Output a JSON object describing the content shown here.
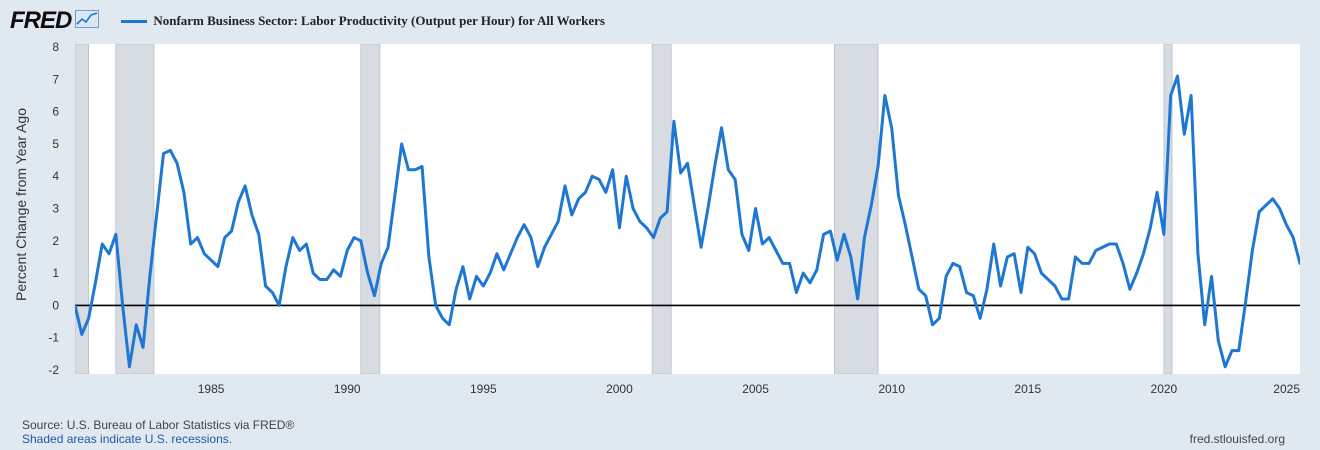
{
  "header": {
    "logo_text": "FRED",
    "logo_icon": "line-chart-icon",
    "legend_label": "Nonfarm Business Sector: Labor Productivity (Output per Hour) for All Workers",
    "series_color": "#1f77d4"
  },
  "footer": {
    "source": "Source: U.S. Bureau of Labor Statistics via FRED®",
    "recession_note": "Shaded areas indicate U.S. recessions.",
    "url": "fred.stlouisfed.org"
  },
  "chart_data": {
    "type": "line",
    "title": "",
    "xlabel": "",
    "ylabel": "Percent Change from Year Ago",
    "xlim": [
      1980.0,
      2025.0
    ],
    "ylim": [
      -2,
      8
    ],
    "yticks": [
      -2,
      -1,
      0,
      1,
      2,
      3,
      4,
      5,
      6,
      7,
      8
    ],
    "xticks": [
      1985,
      1990,
      1995,
      2000,
      2005,
      2010,
      2015,
      2020,
      2025
    ],
    "grid": false,
    "zero_line": true,
    "recession_shading": [
      [
        1980.0,
        1980.5
      ],
      [
        1981.5,
        1982.9
      ],
      [
        1990.5,
        1991.2
      ],
      [
        2001.2,
        2001.9
      ],
      [
        2007.9,
        2009.5
      ],
      [
        2020.0,
        2020.3
      ]
    ],
    "series": [
      {
        "name": "Nonfarm Business Sector: Labor Productivity (Output per Hour) for All Workers",
        "color": "#1f77d4",
        "x": [
          1980.0,
          1980.25,
          1980.5,
          1980.75,
          1981.0,
          1981.25,
          1981.5,
          1981.75,
          1982.0,
          1982.25,
          1982.5,
          1982.75,
          1983.0,
          1983.25,
          1983.5,
          1983.75,
          1984.0,
          1984.25,
          1984.5,
          1984.75,
          1985.0,
          1985.25,
          1985.5,
          1985.75,
          1986.0,
          1986.25,
          1986.5,
          1986.75,
          1987.0,
          1987.25,
          1987.5,
          1987.75,
          1988.0,
          1988.25,
          1988.5,
          1988.75,
          1989.0,
          1989.25,
          1989.5,
          1989.75,
          1990.0,
          1990.25,
          1990.5,
          1990.75,
          1991.0,
          1991.25,
          1991.5,
          1991.75,
          1992.0,
          1992.25,
          1992.5,
          1992.75,
          1993.0,
          1993.25,
          1993.5,
          1993.75,
          1994.0,
          1994.25,
          1994.5,
          1994.75,
          1995.0,
          1995.25,
          1995.5,
          1995.75,
          1996.0,
          1996.25,
          1996.5,
          1996.75,
          1997.0,
          1997.25,
          1997.5,
          1997.75,
          1998.0,
          1998.25,
          1998.5,
          1998.75,
          1999.0,
          1999.25,
          1999.5,
          1999.75,
          2000.0,
          2000.25,
          2000.5,
          2000.75,
          2001.0,
          2001.25,
          2001.5,
          2001.75,
          2002.0,
          2002.25,
          2002.5,
          2002.75,
          2003.0,
          2003.25,
          2003.5,
          2003.75,
          2004.0,
          2004.25,
          2004.5,
          2004.75,
          2005.0,
          2005.25,
          2005.5,
          2005.75,
          2006.0,
          2006.25,
          2006.5,
          2006.75,
          2007.0,
          2007.25,
          2007.5,
          2007.75,
          2008.0,
          2008.25,
          2008.5,
          2008.75,
          2009.0,
          2009.25,
          2009.5,
          2009.75,
          2010.0,
          2010.25,
          2010.5,
          2010.75,
          2011.0,
          2011.25,
          2011.5,
          2011.75,
          2012.0,
          2012.25,
          2012.5,
          2012.75,
          2013.0,
          2013.25,
          2013.5,
          2013.75,
          2014.0,
          2014.25,
          2014.5,
          2014.75,
          2015.0,
          2015.25,
          2015.5,
          2015.75,
          2016.0,
          2016.25,
          2016.5,
          2016.75,
          2017.0,
          2017.25,
          2017.5,
          2017.75,
          2018.0,
          2018.25,
          2018.5,
          2018.75,
          2019.0,
          2019.25,
          2019.5,
          2019.75,
          2020.0,
          2020.25,
          2020.5,
          2020.75,
          2021.0,
          2021.25,
          2021.5,
          2021.75,
          2022.0,
          2022.25,
          2022.5,
          2022.75,
          2023.0,
          2023.25,
          2023.5,
          2023.75,
          2024.0,
          2024.25,
          2024.5,
          2024.75,
          2025.0
        ],
        "y": [
          0.0,
          -0.9,
          -0.4,
          0.7,
          1.9,
          1.6,
          2.2,
          0.0,
          -1.9,
          -0.6,
          -1.3,
          0.9,
          2.8,
          4.7,
          4.8,
          4.4,
          3.5,
          1.9,
          2.1,
          1.6,
          1.4,
          1.2,
          2.1,
          2.3,
          3.2,
          3.7,
          2.8,
          2.2,
          0.6,
          0.4,
          0.0,
          1.2,
          2.1,
          1.7,
          1.9,
          1.0,
          0.8,
          0.8,
          1.1,
          0.9,
          1.7,
          2.1,
          2.0,
          1.0,
          0.3,
          1.3,
          1.8,
          3.4,
          5.0,
          4.2,
          4.2,
          4.3,
          1.5,
          0.0,
          -0.4,
          -0.6,
          0.5,
          1.2,
          0.2,
          0.9,
          0.6,
          1.0,
          1.6,
          1.1,
          1.6,
          2.1,
          2.5,
          2.1,
          1.2,
          1.8,
          2.2,
          2.6,
          3.7,
          2.8,
          3.3,
          3.5,
          4.0,
          3.9,
          3.5,
          4.2,
          2.4,
          4.0,
          3.0,
          2.6,
          2.4,
          2.1,
          2.7,
          2.9,
          5.7,
          4.1,
          4.4,
          3.1,
          1.8,
          3.0,
          4.3,
          5.5,
          4.2,
          3.9,
          2.2,
          1.7,
          3.0,
          1.9,
          2.1,
          1.7,
          1.3,
          1.3,
          0.4,
          1.0,
          0.7,
          1.1,
          2.2,
          2.3,
          1.4,
          2.2,
          1.5,
          0.2,
          2.1,
          3.1,
          4.3,
          6.5,
          5.5,
          3.4,
          2.5,
          1.5,
          0.5,
          0.3,
          -0.6,
          -0.4,
          0.9,
          1.3,
          1.2,
          0.4,
          0.3,
          -0.4,
          0.5,
          1.9,
          0.6,
          1.5,
          1.6,
          0.4,
          1.8,
          1.6,
          1.0,
          0.8,
          0.6,
          0.2,
          0.2,
          1.5,
          1.3,
          1.3,
          1.7,
          1.8,
          1.9,
          1.9,
          1.3,
          0.5,
          1.0,
          1.6,
          2.4,
          3.5,
          2.2,
          6.5,
          7.1,
          5.3,
          6.5,
          1.6,
          -0.6,
          0.9,
          -1.1,
          -1.9,
          -1.4,
          -1.4,
          0.1,
          1.7,
          2.9,
          3.1,
          3.3,
          3.0,
          2.5,
          2.1,
          1.3
        ]
      }
    ]
  }
}
